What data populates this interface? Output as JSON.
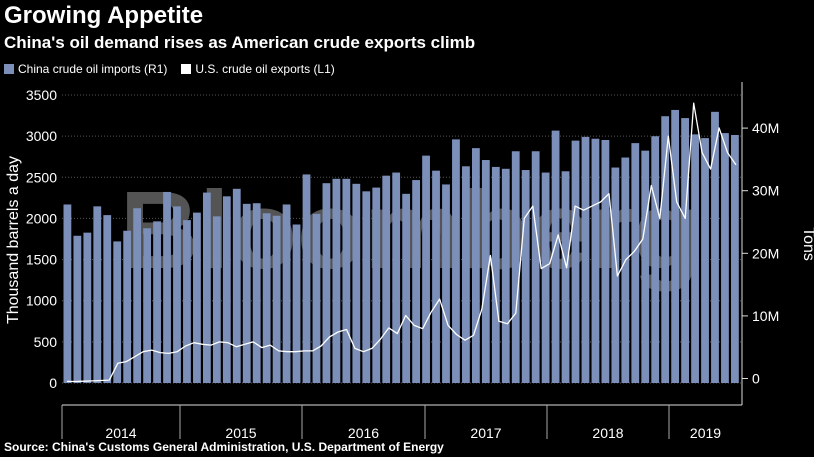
{
  "chart_data": {
    "type": "bar",
    "title": "Growing Appetite",
    "subtitle": "China's oil demand rises as American crude exports climb",
    "legend_position": "top-left",
    "grid": true,
    "colors": {
      "imports": "#7b8fb8",
      "exports": "#ffffff",
      "background": "#000000"
    },
    "x_labels": [
      "2014",
      "2015",
      "2016",
      "2017",
      "2018",
      "2019"
    ],
    "left_axis": {
      "label": "Thousand barrels a day",
      "range": [
        0,
        3500
      ],
      "ticks": [
        "0",
        "500",
        "1000",
        "1500",
        "2000",
        "2500",
        "3000",
        "3500"
      ]
    },
    "right_axis": {
      "label": "Tons",
      "range": [
        -2200000,
        48000000
      ],
      "ticks": [
        "0",
        "10M",
        "20M",
        "30M",
        "40M"
      ]
    },
    "series": [
      {
        "name": "China crude oil imports (R1)",
        "type": "bar",
        "axis": "right",
        "values": [
          27.8,
          22.8,
          23.3,
          27.5,
          26.1,
          21.9,
          23.6,
          27.2,
          24.0,
          25.1,
          29.8,
          27.5,
          25.3,
          26.5,
          29.7,
          25.9,
          29.1,
          30.3,
          27.9,
          28.0,
          26.4,
          26.0,
          27.8,
          24.6,
          32.6,
          26.3,
          31.2,
          31.9,
          31.9,
          31.1,
          29.9,
          30.5,
          32.4,
          32.9,
          29.5,
          31.7,
          35.6,
          33.2,
          31.0,
          38.2,
          33.9,
          36.8,
          34.9,
          33.8,
          33.5,
          36.3,
          33.3,
          36.3,
          32.9,
          39.6,
          33.1,
          38.0,
          38.6,
          38.3,
          38.1,
          33.7,
          35.3,
          37.6,
          36.4,
          38.7,
          41.9,
          42.9,
          41.6,
          39.0,
          38.4,
          42.6,
          39.2,
          38.9
        ]
      },
      {
        "name": "U.S. crude oil exports (L1)",
        "type": "line",
        "axis": "left",
        "values": [
          20,
          18,
          22,
          25,
          30,
          35,
          240,
          260,
          320,
          380,
          400,
          370,
          360,
          380,
          450,
          490,
          470,
          460,
          500,
          490,
          440,
          470,
          500,
          430,
          460,
          390,
          380,
          380,
          390,
          390,
          450,
          560,
          620,
          650,
          420,
          380,
          420,
          530,
          670,
          600,
          820,
          700,
          660,
          860,
          1020,
          700,
          590,
          520,
          580,
          900,
          1550,
          750,
          720,
          850,
          2000,
          2150,
          1390,
          1450,
          1800,
          1400,
          2150,
          2100,
          2150,
          2200,
          2300,
          1300,
          1500,
          1600,
          1750,
          2400,
          2000,
          3000,
          2200,
          2000,
          3400,
          2800,
          2600,
          3100,
          2800,
          2650
        ]
      }
    ]
  }
}
